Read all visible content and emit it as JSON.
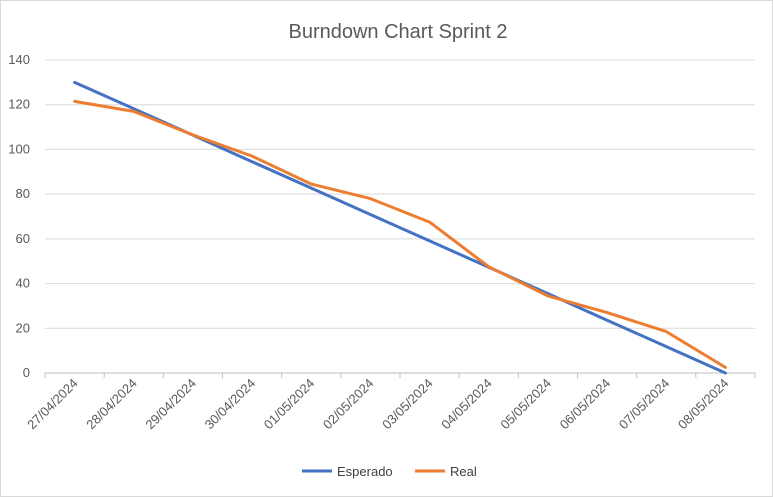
{
  "chart_data": {
    "type": "line",
    "title": "Burndown Chart Sprint 2",
    "xlabel": "",
    "ylabel": "",
    "categories": [
      "27/04/2024",
      "28/04/2024",
      "29/04/2024",
      "30/04/2024",
      "01/05/2024",
      "02/05/2024",
      "03/05/2024",
      "04/05/2024",
      "05/05/2024",
      "06/05/2024",
      "07/05/2024",
      "08/05/2024"
    ],
    "ylim": [
      0,
      140
    ],
    "yticks": [
      0,
      20,
      40,
      60,
      80,
      100,
      120,
      140
    ],
    "grid": true,
    "legend": "bottom",
    "series": [
      {
        "name": "Esperado",
        "color": "#4472C4",
        "values": [
          130,
          118.2,
          106.4,
          94.5,
          82.7,
          70.9,
          59.1,
          47.3,
          35.5,
          23.6,
          11.8,
          0
        ]
      },
      {
        "name": "Real",
        "color": "#ED7D31",
        "values": [
          121.5,
          117,
          106.5,
          97,
          84.5,
          78,
          67.5,
          47.5,
          34.5,
          27,
          18.5,
          2.5
        ]
      }
    ]
  }
}
